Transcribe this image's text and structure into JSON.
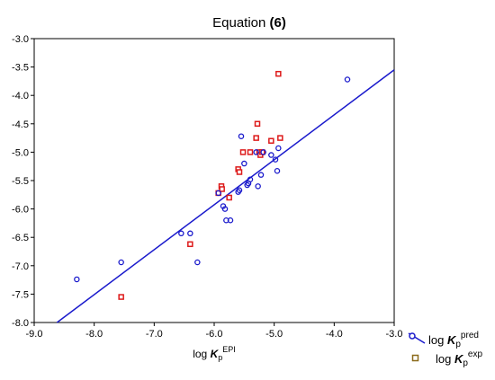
{
  "chart_data": {
    "type": "scatter",
    "title": {
      "prefix": "Equation ",
      "number": "(6)"
    },
    "xlabel": {
      "base": "log ",
      "var": "K",
      "sub": "p",
      "sup": "EPI"
    },
    "ylabel": "",
    "xlim": [
      -9.0,
      -3.0
    ],
    "ylim": [
      -8.0,
      -3.0
    ],
    "xticks": [
      -9.0,
      -8.0,
      -7.0,
      -6.0,
      -5.0,
      -4.0,
      -3.0
    ],
    "yticks": [
      -3.0,
      -3.5,
      -4.0,
      -4.5,
      -5.0,
      -5.5,
      -6.0,
      -6.5,
      -7.0,
      -7.5,
      -8.0
    ],
    "xtick_labels": [
      "-9.0",
      "-8.0",
      "-7.0",
      "-6.0",
      "-5.0",
      "-4.0",
      "-3.0"
    ],
    "ytick_labels": [
      "-3.0",
      "-3.5",
      "-4.0",
      "-4.5",
      "-5.0",
      "-5.5",
      "-6.0",
      "-6.5",
      "-7.0",
      "-7.5",
      "-8.0"
    ],
    "grid": "dashed",
    "legend_position": "bottom-right",
    "fit_line": {
      "color": "#1a1acc",
      "points": [
        [
          -8.62,
          -8.0
        ],
        [
          -3.0,
          -3.55
        ]
      ]
    },
    "series": [
      {
        "legend": {
          "base": "log ",
          "var": "K",
          "sub": "p",
          "sup": "pred"
        },
        "marker": "circle",
        "color": "#1a1acc",
        "points": [
          [
            -8.29,
            -7.24
          ],
          [
            -7.55,
            -6.94
          ],
          [
            -6.55,
            -6.43
          ],
          [
            -6.4,
            -6.43
          ],
          [
            -6.28,
            -6.94
          ],
          [
            -5.93,
            -5.72
          ],
          [
            -5.85,
            -5.95
          ],
          [
            -5.82,
            -6.0
          ],
          [
            -5.8,
            -6.2
          ],
          [
            -5.73,
            -6.2
          ],
          [
            -5.6,
            -5.7
          ],
          [
            -5.58,
            -5.67
          ],
          [
            -5.55,
            -4.72
          ],
          [
            -5.5,
            -5.2
          ],
          [
            -5.45,
            -5.58
          ],
          [
            -5.43,
            -5.55
          ],
          [
            -5.4,
            -5.48
          ],
          [
            -5.3,
            -5.0
          ],
          [
            -5.27,
            -5.6
          ],
          [
            -5.22,
            -5.4
          ],
          [
            -5.18,
            -5.0
          ],
          [
            -5.05,
            -5.05
          ],
          [
            -4.98,
            -5.13
          ],
          [
            -4.95,
            -5.33
          ],
          [
            -4.93,
            -4.93
          ],
          [
            -3.78,
            -3.72
          ]
        ]
      },
      {
        "legend": {
          "base": "log ",
          "var": "K",
          "sub": "p",
          "sup": "exp"
        },
        "marker": "square",
        "color": "#dd1a1a",
        "points": [
          [
            -7.55,
            -7.55
          ],
          [
            -6.4,
            -6.62
          ],
          [
            -5.93,
            -5.72
          ],
          [
            -5.88,
            -5.6
          ],
          [
            -5.87,
            -5.65
          ],
          [
            -5.75,
            -5.8
          ],
          [
            -5.6,
            -5.3
          ],
          [
            -5.58,
            -5.35
          ],
          [
            -5.52,
            -5.0
          ],
          [
            -5.4,
            -5.0
          ],
          [
            -5.3,
            -4.75
          ],
          [
            -5.28,
            -4.5
          ],
          [
            -5.25,
            -5.0
          ],
          [
            -5.23,
            -5.05
          ],
          [
            -5.2,
            -5.0
          ],
          [
            -5.05,
            -4.8
          ],
          [
            -4.93,
            -3.62
          ],
          [
            -4.9,
            -4.75
          ]
        ]
      }
    ]
  }
}
